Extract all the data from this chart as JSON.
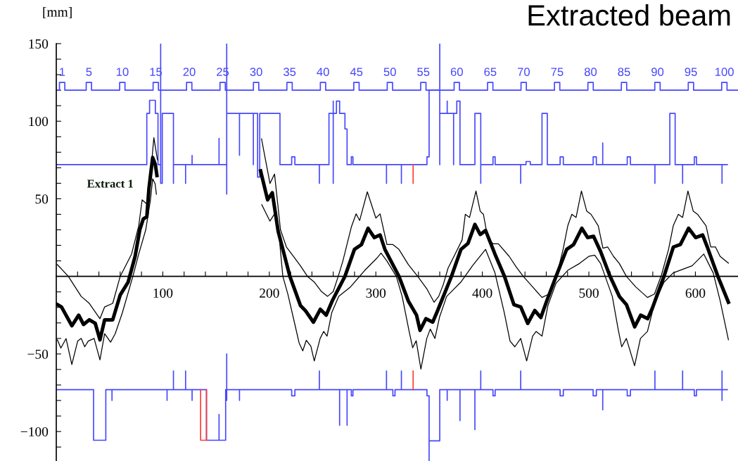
{
  "chart_data": {
    "type": "line",
    "title": "Extracted beam",
    "ylabel": "[mm]",
    "xlim": [
      0,
      640
    ],
    "ylim": [
      -119,
      150
    ],
    "xticks": [
      {
        "value": 20,
        "label": null
      },
      {
        "value": 40,
        "label": null
      },
      {
        "value": 60,
        "label": null
      },
      {
        "value": 80,
        "label": null
      },
      100,
      {
        "value": 120,
        "label": null
      },
      {
        "value": 140,
        "label": null
      },
      {
        "value": 160,
        "label": null
      },
      {
        "value": 180,
        "label": null
      },
      200,
      {
        "value": 220,
        "label": null
      },
      {
        "value": 240,
        "label": null
      },
      {
        "value": 260,
        "label": null
      },
      {
        "value": 280,
        "label": null
      },
      300,
      {
        "value": 320,
        "label": null
      },
      {
        "value": 340,
        "label": null
      },
      {
        "value": 360,
        "label": null
      },
      {
        "value": 380,
        "label": null
      },
      400,
      {
        "value": 420,
        "label": null
      },
      {
        "value": 440,
        "label": null
      },
      {
        "value": 460,
        "label": null
      },
      {
        "value": 480,
        "label": null
      },
      500,
      {
        "value": 520,
        "label": null
      },
      {
        "value": 540,
        "label": null
      },
      {
        "value": 560,
        "label": null
      },
      {
        "value": 580,
        "label": null
      },
      600,
      {
        "value": 620,
        "label": null
      }
    ],
    "yticks": [
      {
        "value": -110,
        "label": null
      },
      {
        "value": -100,
        "label": "−100"
      },
      {
        "value": -90,
        "label": null
      },
      {
        "value": -80,
        "label": null
      },
      {
        "value": -70,
        "label": null
      },
      {
        "value": -60,
        "label": null
      },
      {
        "value": -50,
        "label": "−50"
      },
      {
        "value": -40,
        "label": null
      },
      {
        "value": -30,
        "label": null
      },
      {
        "value": -20,
        "label": null
      },
      {
        "value": -10,
        "label": null
      },
      {
        "value": 10,
        "label": null
      },
      {
        "value": 20,
        "label": null
      },
      {
        "value": 30,
        "label": null
      },
      {
        "value": 40,
        "label": null
      },
      50,
      {
        "value": 60,
        "label": null
      },
      {
        "value": 70,
        "label": null
      },
      {
        "value": 80,
        "label": null
      },
      {
        "value": 90,
        "label": null
      },
      100,
      {
        "value": 110,
        "label": null
      },
      {
        "value": 120,
        "label": null
      },
      {
        "value": 130,
        "label": null
      },
      {
        "value": 140,
        "label": null
      },
      150
    ],
    "x2lim": [
      0.12,
      102.04
    ],
    "x2ticks": [
      1,
      5,
      10,
      15,
      20,
      25,
      30,
      35,
      40,
      45,
      50,
      55,
      60,
      65,
      70,
      75,
      80,
      85,
      90,
      95,
      100
    ],
    "grid": false,
    "legend": false,
    "series": [
      {
        "color": "#000000",
        "x": [
          1,
          4.9,
          14.6,
          21,
          25.6,
          31,
          36.6,
          41,
          45.4,
          53,
          60,
          67.4,
          74,
          78.4,
          81.7,
          85,
          87,
          90.5,
          93,
          94.5,
          140,
          191.8,
          198.4,
          202.8,
          208.3,
          219.3,
          229.3,
          233.8,
          241.4,
          247.9,
          253.4,
          259,
          271,
          279.9,
          286.5,
          292.7,
          298.6,
          304,
          308.5,
          321.7,
          330.5,
          338.2,
          341.5,
          347,
          353.4,
          358,
          371,
          379.9,
          386.5,
          393,
          398,
          403,
          411.8,
          420.8,
          429.6,
          436,
          442.6,
          449.2,
          454.9,
          460.4,
          469.2,
          479.1,
          485.7,
          493.4,
          498.9,
          504.4,
          511,
          519.9,
          528.7,
          535.3,
          543,
          548.6,
          555.2,
          559.6,
          570.5,
          579.3,
          585.9,
          593.6,
          600.2,
          606.8,
          611.2,
          621.1,
          631
        ],
        "values": [
          -18.2,
          -19.7,
          -31.8,
          -25,
          -31,
          -28,
          -30.3,
          -40.9,
          -28,
          -28,
          -12,
          -3.8,
          12.9,
          30,
          37,
          38.5,
          56.7,
          76.6,
          72,
          65,
          null,
          68,
          49.3,
          53.9,
          29,
          0,
          -18.9,
          -22,
          -29.5,
          -21.2,
          -25,
          -15.9,
          0,
          17.4,
          20.5,
          31,
          25,
          26.7,
          17.4,
          0,
          -15.9,
          -25,
          -34.8,
          -27.3,
          -29.5,
          -22,
          0,
          17.4,
          21.2,
          33.5,
          27,
          29.6,
          14.4,
          0,
          -18.2,
          -19.7,
          -30.3,
          -22,
          -26.5,
          -15.9,
          0,
          17.4,
          20.5,
          31,
          25,
          25.8,
          16,
          0,
          -13,
          -18.2,
          -32.5,
          -25,
          -27.3,
          -20.5,
          0,
          18.9,
          20.5,
          31,
          25,
          26.7,
          18.9,
          0,
          -16.7
        ]
      },
      {
        "color": "#000000",
        "x": [
          1,
          11.3,
          23.4,
          31,
          41,
          45.4,
          53,
          60,
          70.7,
          77.4,
          80.6,
          86,
          91.6,
          95,
          140,
          192.7,
          200.6,
          204.9,
          210.5,
          216,
          222.6,
          229.2,
          235.8,
          242.4,
          249,
          254.6,
          260,
          264.7,
          269,
          277,
          281.5,
          284.8,
          292,
          300,
          304,
          307,
          310.4,
          316,
          321.7,
          330.5,
          339.3,
          348.1,
          354.7,
          359,
          363.3,
          367.8,
          374.4,
          381,
          384,
          388,
          394,
          398,
          401,
          405,
          410,
          415,
          425.2,
          431.8,
          438.4,
          447.2,
          456,
          462.6,
          469.2,
          475.8,
          480.2,
          484,
          488,
          493,
          498,
          502,
          508.8,
          513.2,
          517.6,
          523.1,
          528.6,
          535.2,
          544,
          555,
          561.6,
          568.2,
          574.8,
          579.2,
          584,
          588,
          593,
          598,
          602,
          610,
          614.4,
          618.8,
          623.2,
          631
        ],
        "values": [
          7.6,
          0,
          -12.9,
          -17.4,
          -27.3,
          -19.7,
          -17.4,
          0,
          14.4,
          32.6,
          49.3,
          46,
          89.4,
          75,
          null,
          88.6,
          59.9,
          65.9,
          30,
          19,
          12.9,
          6.8,
          0,
          -3.8,
          -9.8,
          -12.9,
          -9.8,
          0,
          9.8,
          31.8,
          40.3,
          36,
          54.5,
          37.6,
          40.3,
          31,
          20.5,
          20.5,
          17.4,
          7.6,
          0,
          -8.3,
          -16.7,
          -12.9,
          -5.3,
          5.3,
          14.4,
          23.5,
          40,
          38,
          55,
          42,
          40,
          25,
          21,
          21,
          12.9,
          6,
          0,
          -6.8,
          -13.6,
          -11.4,
          -1,
          17.4,
          32.6,
          40,
          38,
          55,
          42,
          40,
          32.6,
          18.2,
          19,
          12.9,
          8.3,
          0,
          -6.8,
          -13.6,
          -11.4,
          1,
          17.4,
          32.6,
          40,
          38,
          55,
          42,
          40,
          32.6,
          19,
          19,
          12.9,
          8.5
        ]
      },
      {
        "color": "#000000",
        "x": [
          1,
          4.3,
          9.2,
          14.6,
          20.1,
          23.4,
          26.7,
          30,
          35.5,
          41,
          45.4,
          51,
          55.3,
          62,
          71.9,
          77.4,
          84,
          88.4,
          90.5,
          92.8,
          94,
          140,
          192.9,
          200.6,
          204.9,
          209.3,
          212.7,
          217.4,
          224,
          228,
          231.4,
          234.7,
          239,
          242.2,
          247.7,
          251,
          254.2,
          258.6,
          265.2,
          276.2,
          289.5,
          300.5,
          304.9,
          310.4,
          319.2,
          324.7,
          331.3,
          334.6,
          337.9,
          342.3,
          347.8,
          351.1,
          355.5,
          359.9,
          366.5,
          379.7,
          390.7,
          403,
          411.8,
          420.6,
          426,
          430.5,
          436,
          441.6,
          447.2,
          450.5,
          456,
          461.5,
          469.2,
          480.2,
          491.2,
          500,
          505.5,
          511,
          522,
          527.5,
          530.8,
          535.2,
          542.9,
          548.4,
          555,
          561.6,
          570.5,
          579.3,
          596.9,
          607.9,
          616.7,
          623.3,
          631
        ],
        "values": [
          -40.9,
          -46.2,
          -40.1,
          -56.8,
          -41.7,
          -40,
          -45.4,
          -41.7,
          -40,
          -53.8,
          -37,
          -42.4,
          -37,
          -23.5,
          0,
          14.4,
          30,
          49.3,
          62.9,
          59.6,
          52.9,
          null,
          46.2,
          35.6,
          40.3,
          25,
          0,
          -11.4,
          -31,
          -43,
          -48,
          -41.2,
          -45,
          -54.5,
          -40,
          -35.5,
          -38.5,
          -23.4,
          -12.9,
          -6.8,
          3.8,
          11.4,
          15,
          9.9,
          0,
          -12.9,
          -35.6,
          -46,
          -41.5,
          -59.8,
          -40,
          -34,
          -40,
          -26,
          -12.9,
          -3.8,
          6.8,
          17.4,
          2.3,
          -23.5,
          -41.7,
          -45.4,
          -40,
          -54.5,
          -38.5,
          -35.5,
          -38.5,
          -18.9,
          -4.4,
          3.9,
          8.3,
          12.9,
          13.6,
          8.3,
          -12.9,
          -34.1,
          -45.4,
          -40,
          -57.6,
          -40,
          -35.5,
          -17.4,
          -3.8,
          2.3,
          6.8,
          14.4,
          2.3,
          -15.9,
          -40.9
        ]
      },
      {
        "type": "step",
        "color": "#4646ff",
        "x": [
          0,
          85,
          87.6,
          93,
          95.5,
          98,
          98,
          99.5,
          110,
          110,
          121.4,
          121.4,
          127.5,
          127.5,
          152.8,
          152.8,
          160,
          160,
          160,
          172,
          172,
          185,
          185,
          189,
          191,
          210,
          221,
          224,
          247,
          247,
          256,
          260,
          260,
          260,
          263,
          266,
          271,
          273,
          277,
          278.5,
          310,
          310,
          324,
          324,
          348,
          350,
          360,
          360,
          360,
          367,
          367,
          373,
          373,
          376,
          379,
          393,
          398.5,
          398.5,
          410,
          412,
          436,
          436,
          441,
          445,
          456,
          461,
          473,
          476,
          504,
          507,
          513,
          513,
          536,
          539,
          562,
          562,
          576,
          581,
          588,
          588,
          599,
          601,
          625,
          625,
          630
        ],
        "values": [
          72,
          105,
          113.5,
          105,
          72,
          150,
          60,
          105,
          60,
          72,
          60,
          72,
          78,
          72,
          89,
          72,
          150,
          53,
          105,
          78,
          105,
          72,
          105,
          64,
          105,
          72,
          77,
          72,
          60,
          72,
          105,
          113,
          60,
          105,
          113,
          105,
          95,
          72,
          77,
          72,
          60,
          72,
          60,
          72,
          77,
          120,
          150,
          72,
          105,
          113,
          105,
          72,
          105,
          113,
          72,
          105,
          60,
          72,
          77,
          72,
          60,
          72,
          74,
          72,
          105,
          72,
          77,
          72,
          77,
          72,
          86,
          72,
          77,
          72,
          60,
          72,
          105,
          72,
          60,
          72,
          77,
          72,
          60,
          72,
          72
        ]
      },
      {
        "type": "step",
        "color": "#4646ff",
        "x": [
          0,
          35,
          46.5,
          52.3,
          52.3,
          104,
          104,
          110,
          110,
          121.4,
          121.4,
          127.5,
          127.5,
          141,
          152.8,
          152.8,
          159,
          160,
          160,
          160,
          172,
          172,
          221,
          224,
          247,
          247,
          266,
          266,
          273,
          273,
          277,
          278.5,
          310,
          310,
          316,
          318,
          324,
          324,
          348,
          350,
          350,
          360,
          367,
          367,
          379,
          379,
          393,
          393,
          398.5,
          398.5,
          410,
          412,
          436,
          436,
          473,
          476,
          504,
          507,
          513,
          513,
          536,
          539,
          562,
          562,
          588,
          588,
          599,
          601,
          625,
          625,
          625,
          630
        ],
        "values": [
          -73,
          -105.6,
          -73,
          -80,
          -73,
          -80,
          -73,
          -61,
          -73,
          -61,
          -73,
          -80,
          -73,
          -105.6,
          -89,
          -105.6,
          -73,
          -50,
          -80,
          -73,
          -80,
          -73,
          -77,
          -73,
          -61,
          -73,
          -96,
          -73,
          -96,
          -73,
          -77,
          -73,
          -61,
          -73,
          -77,
          -73,
          -61,
          -73,
          -77,
          -119,
          -106,
          -73,
          -80,
          -73,
          -93,
          -73,
          -98.8,
          -73,
          -61,
          -73,
          -77,
          -73,
          -61,
          -73,
          -77,
          -73,
          -77,
          -73,
          -86,
          -73,
          -77,
          -73,
          -61,
          -73,
          -61,
          -73,
          -77,
          -73,
          -61,
          -80,
          -73,
          -73
        ]
      },
      {
        "type": "line",
        "color": "#ff3b30",
        "x": [
          135.5,
          135.5,
          141,
          141
        ],
        "values": [
          -73,
          -105.6,
          -105.6,
          -73
        ]
      },
      {
        "type": "line",
        "color": "#ff3b30",
        "x": [
          335,
          335
        ],
        "values": [
          72,
          60
        ]
      },
      {
        "type": "line",
        "color": "#ff3b30",
        "x": [
          335,
          335
        ],
        "values": [
          -73,
          -61
        ]
      },
      {
        "type": "step",
        "color": "#4646ff",
        "x": [
          0,
          3,
          8,
          28.1,
          33.1,
          59.5,
          64.5,
          90.9,
          95.9,
          122.3,
          127.3,
          153.7,
          158.7,
          185.1,
          190.1,
          216.5,
          221.5,
          247.9,
          252.9,
          279.3,
          284.3,
          310.7,
          315.7,
          342.1,
          347.1,
          373.5,
          378.5,
          404.9,
          409.9,
          436.3,
          441.3,
          467.7,
          472.7,
          499.1,
          504.1,
          530.5,
          535.5,
          561.9,
          566.9,
          593.3,
          598.3,
          624.7,
          629.7,
          640
        ],
        "values": [
          120,
          125,
          120,
          125,
          120,
          125,
          120,
          125,
          120,
          125,
          120,
          125,
          120,
          125,
          120,
          125,
          120,
          125,
          120,
          125,
          120,
          125,
          120,
          125,
          120,
          125,
          120,
          125,
          120,
          125,
          120,
          125,
          120,
          125,
          120,
          125,
          120,
          125,
          120,
          125,
          120,
          125,
          120,
          120
        ]
      }
    ],
    "annotations": [
      "Extract 1"
    ]
  }
}
